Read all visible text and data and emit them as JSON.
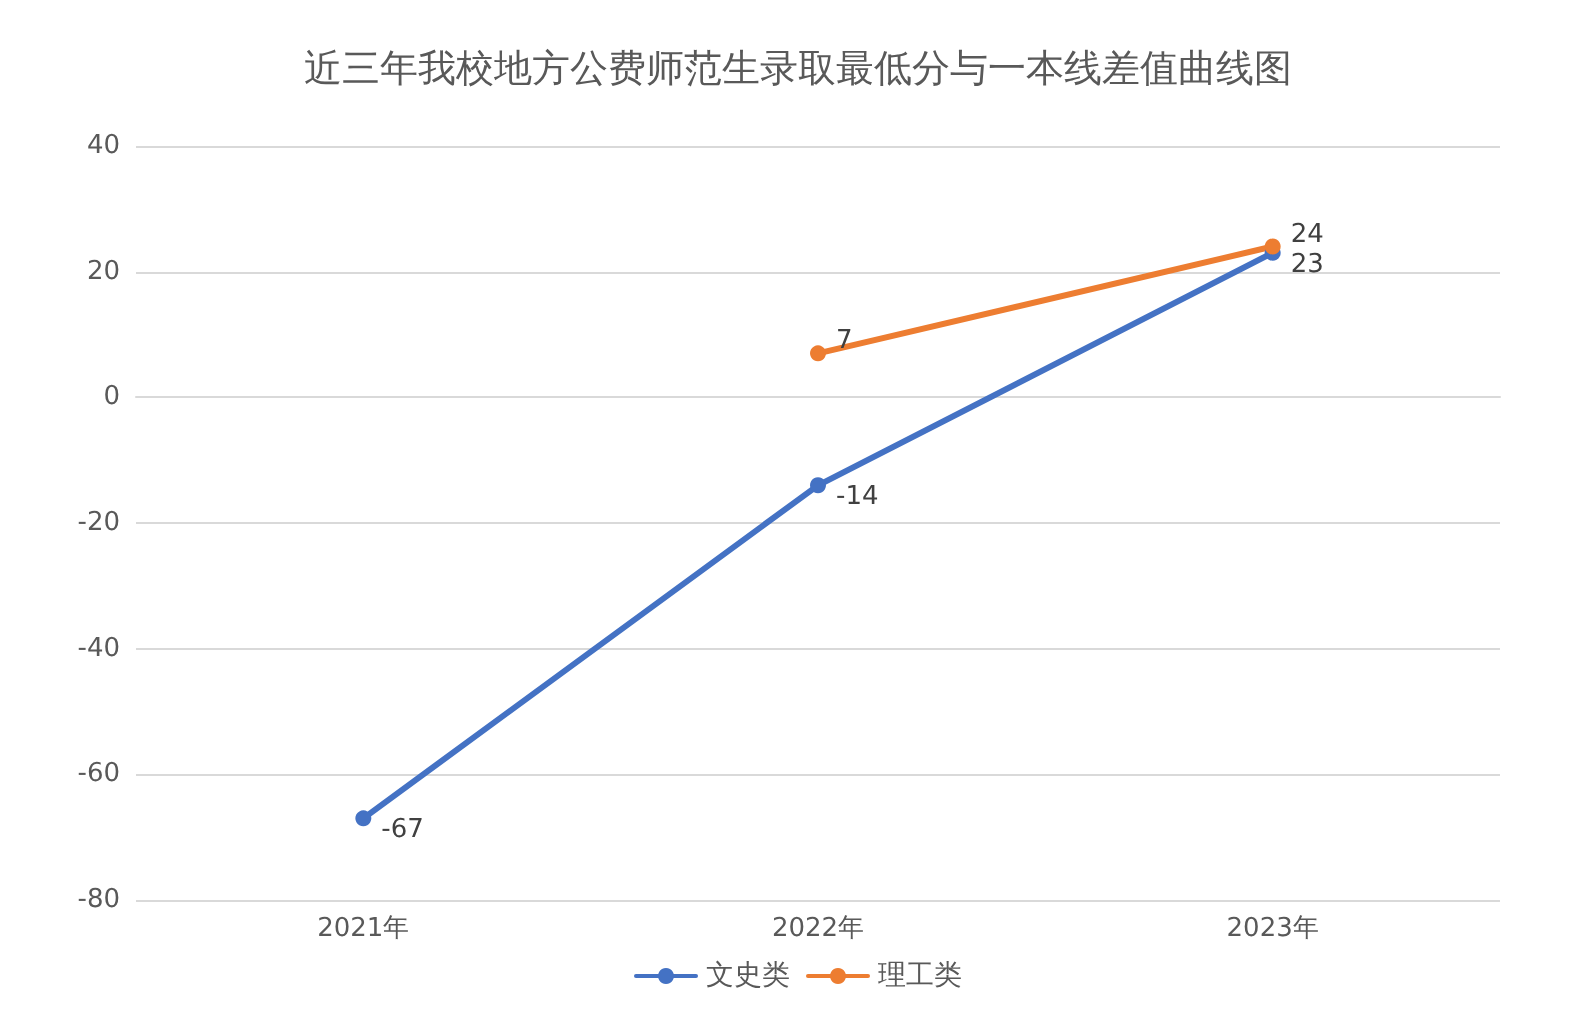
{
  "chart_data": {
    "type": "line",
    "title": "近三年我校地方公费师范生录取最低分与一本线差值曲线图",
    "categories": [
      "2021年",
      "2022年",
      "2023年"
    ],
    "series": [
      {
        "name": "文史类",
        "color": "#4472c4",
        "values": [
          -67,
          -14,
          23
        ]
      },
      {
        "name": "理工类",
        "color": "#ed7d31",
        "values": [
          null,
          7,
          24
        ]
      }
    ],
    "ylim": [
      -80,
      40
    ],
    "yticks": [
      -80,
      -60,
      -40,
      -20,
      0,
      20,
      40
    ],
    "grid": "y",
    "legend": "bottom",
    "marker": "circle",
    "line_style": "solid",
    "data_labels": true
  }
}
